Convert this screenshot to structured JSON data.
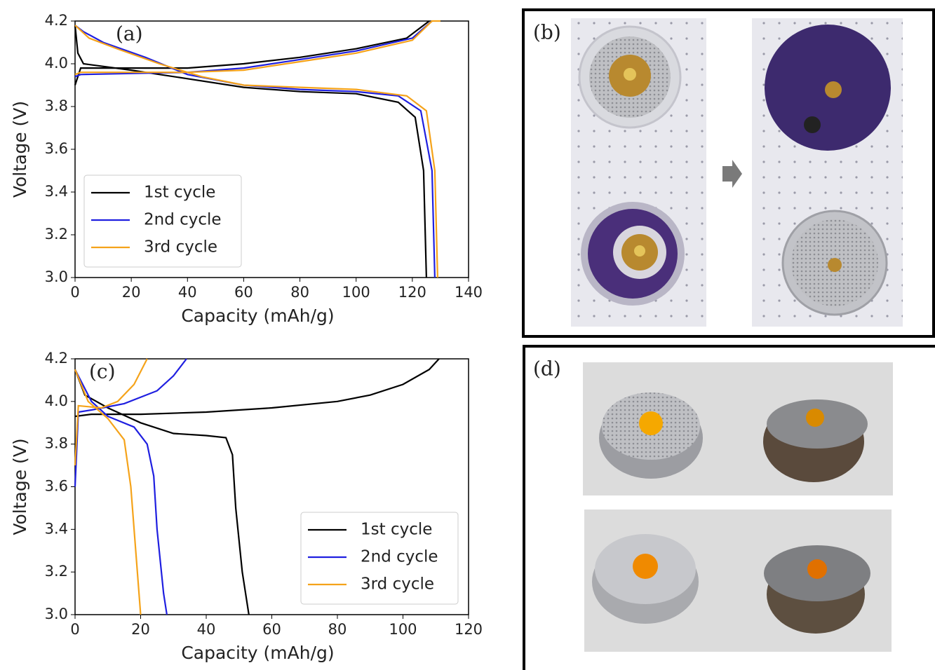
{
  "chart_data": [
    {
      "type": "line",
      "annotation": "(a)",
      "x_label": "Capacity (mAh/g)",
      "y_label": "Voltage (V)",
      "xlim": [
        0,
        140
      ],
      "xticks": [
        0,
        20,
        40,
        60,
        80,
        100,
        120,
        140
      ],
      "ylim": [
        3.0,
        4.2
      ],
      "yticks": [
        {
          "value": 3.0,
          "label": "3.0"
        },
        3.2,
        3.4,
        3.6,
        3.8,
        {
          "value": 4.0,
          "label": "4.0"
        },
        4.2
      ],
      "legend": "lower left",
      "grid": false,
      "series": [
        {
          "name": "1st cycle",
          "color": "#000000",
          "x": [
            0,
            2,
            40,
            60,
            80,
            100,
            118,
            126,
            null,
            0,
            1,
            3,
            20,
            40,
            60,
            80,
            100,
            115,
            121,
            124,
            125
          ],
          "values": [
            3.9,
            3.98,
            3.98,
            4.0,
            4.03,
            4.07,
            4.12,
            4.2,
            null,
            4.18,
            4.05,
            4.0,
            3.97,
            3.93,
            3.89,
            3.87,
            3.86,
            3.82,
            3.75,
            3.5,
            3.0
          ]
        },
        {
          "name": "2nd cycle",
          "color": "#1f1fe0",
          "x": [
            0,
            2,
            40,
            60,
            80,
            100,
            120,
            127,
            null,
            0,
            3,
            10,
            25,
            40,
            60,
            80,
            100,
            115,
            123,
            127,
            128
          ],
          "values": [
            3.94,
            3.95,
            3.96,
            3.98,
            4.02,
            4.06,
            4.12,
            4.2,
            null,
            4.18,
            4.15,
            4.1,
            4.03,
            3.95,
            3.9,
            3.88,
            3.87,
            3.85,
            3.78,
            3.5,
            3.0
          ]
        },
        {
          "name": "3rd cycle",
          "color": "#f5a31a",
          "x": [
            0,
            2,
            40,
            60,
            80,
            100,
            120,
            127,
            130,
            null,
            0,
            5,
            15,
            30,
            45,
            60,
            80,
            100,
            118,
            125,
            128,
            129
          ],
          "values": [
            3.95,
            3.96,
            3.96,
            3.97,
            4.01,
            4.05,
            4.11,
            4.2,
            4.2,
            null,
            4.18,
            4.12,
            4.07,
            4.0,
            3.94,
            3.9,
            3.89,
            3.88,
            3.85,
            3.78,
            3.5,
            3.0
          ]
        }
      ]
    },
    {
      "type": "line",
      "annotation": "(c)",
      "x_label": "Capacity (mAh/g)",
      "y_label": "Voltage (V)",
      "xlim": [
        0,
        120
      ],
      "xticks": [
        0,
        20,
        40,
        60,
        80,
        100,
        120
      ],
      "ylim": [
        3.0,
        4.2
      ],
      "yticks": [
        {
          "value": 3.0,
          "label": "3.0"
        },
        3.2,
        3.4,
        3.6,
        3.8,
        {
          "value": 4.0,
          "label": "4.0"
        },
        4.2
      ],
      "legend": "lower right",
      "grid": false,
      "series": [
        {
          "name": "1st cycle",
          "color": "#000000",
          "x": [
            0,
            5,
            20,
            40,
            60,
            80,
            90,
            100,
            108,
            111,
            null,
            0,
            3,
            10,
            20,
            30,
            40,
            46,
            48,
            49,
            51,
            53
          ],
          "values": [
            3.93,
            3.94,
            3.94,
            3.95,
            3.97,
            4.0,
            4.03,
            4.08,
            4.15,
            4.2,
            null,
            4.15,
            4.03,
            3.97,
            3.9,
            3.85,
            3.84,
            3.83,
            3.75,
            3.5,
            3.2,
            3.0
          ]
        },
        {
          "name": "2nd cycle",
          "color": "#1f1fe0",
          "x": [
            0,
            1,
            5,
            15,
            25,
            30,
            34,
            null,
            0,
            5,
            10,
            18,
            22,
            24,
            25,
            27,
            28
          ],
          "values": [
            3.6,
            3.95,
            3.96,
            3.99,
            4.05,
            4.12,
            4.2,
            null,
            4.15,
            4.0,
            3.93,
            3.88,
            3.8,
            3.65,
            3.4,
            3.1,
            3.0
          ]
        },
        {
          "name": "3rd cycle",
          "color": "#f5a31a",
          "x": [
            0,
            1,
            8,
            13,
            18,
            22,
            null,
            0,
            4,
            10,
            15,
            17,
            18.5,
            20
          ],
          "values": [
            3.7,
            3.98,
            3.97,
            4.0,
            4.08,
            4.2,
            null,
            4.15,
            4.0,
            3.92,
            3.82,
            3.6,
            3.3,
            3.0
          ]
        }
      ]
    }
  ],
  "panel_labels": [
    "(b)",
    "(d)"
  ]
}
